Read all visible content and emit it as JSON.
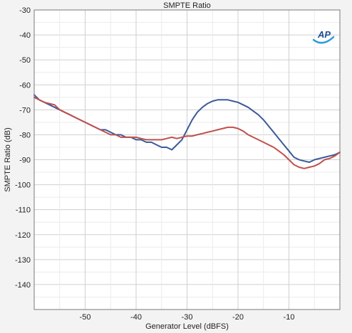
{
  "chart_data": {
    "type": "line",
    "title": "SMPTE Ratio",
    "xlabel": "Generator Level (dBFS)",
    "ylabel": "SMPTE Ratio (dB)",
    "xlim": [
      -60,
      0
    ],
    "ylim": [
      -150,
      -30
    ],
    "xticks": [
      -50,
      -40,
      -30,
      -20,
      -10
    ],
    "yticks": [
      -30,
      -40,
      -50,
      -60,
      -70,
      -80,
      -90,
      -100,
      -110,
      -120,
      -130,
      -140
    ],
    "grid": true,
    "legend": "none",
    "logo": "AP",
    "series": [
      {
        "color": "#3a5a98",
        "x": [
          -60,
          -59,
          -58,
          -57,
          -56,
          -55,
          -54,
          -53,
          -52,
          -51,
          -50,
          -49,
          -48,
          -47,
          -46,
          -45,
          -44,
          -43,
          -42,
          -41,
          -40,
          -39,
          -38,
          -37,
          -36,
          -35,
          -34,
          -33,
          -32,
          -31,
          -30,
          -29,
          -28,
          -27,
          -26,
          -25,
          -24,
          -23,
          -22,
          -21,
          -20,
          -19,
          -18,
          -17,
          -16,
          -15,
          -14,
          -13,
          -12,
          -11,
          -10,
          -9,
          -8,
          -7,
          -6,
          -5,
          -4,
          -3,
          -2,
          -1,
          0
        ],
        "y": [
          -64,
          -66,
          -67,
          -68,
          -69,
          -70,
          -71,
          -72,
          -73,
          -74,
          -75,
          -76,
          -77,
          -78,
          -78,
          -79,
          -80,
          -80,
          -81,
          -81,
          -82,
          -82,
          -83,
          -83,
          -84,
          -85,
          -85,
          -86,
          -84,
          -82,
          -78,
          -74,
          -71,
          -69,
          -67.5,
          -66.5,
          -66,
          -66,
          -66,
          -66.5,
          -67,
          -68,
          -69,
          -70.5,
          -72,
          -74,
          -76.5,
          -79,
          -81.5,
          -84,
          -86.5,
          -89,
          -90,
          -90.5,
          -91,
          -90,
          -89.5,
          -89,
          -88.5,
          -88,
          -87
        ]
      },
      {
        "color": "#c0504d",
        "x": [
          -60,
          -59,
          -58,
          -57,
          -56,
          -55,
          -54,
          -53,
          -52,
          -51,
          -50,
          -49,
          -48,
          -47,
          -46,
          -45,
          -44,
          -43,
          -42,
          -41,
          -40,
          -39,
          -38,
          -37,
          -36,
          -35,
          -34,
          -33,
          -32,
          -31,
          -30,
          -29,
          -28,
          -27,
          -26,
          -25,
          -24,
          -23,
          -22,
          -21,
          -20,
          -19,
          -18,
          -17,
          -16,
          -15,
          -14,
          -13,
          -12,
          -11,
          -10,
          -9,
          -8,
          -7,
          -6,
          -5,
          -4,
          -3,
          -2,
          -1,
          0
        ],
        "y": [
          -65,
          -66,
          -67,
          -67.5,
          -68,
          -70,
          -71,
          -72,
          -73,
          -74,
          -75,
          -76,
          -77,
          -78,
          -79,
          -80,
          -80,
          -81,
          -81,
          -81,
          -81,
          -81.5,
          -82,
          -82,
          -82,
          -82,
          -81.5,
          -81,
          -81.5,
          -81,
          -80.5,
          -80.5,
          -80,
          -79.5,
          -79,
          -78.5,
          -78,
          -77.5,
          -77,
          -77,
          -77.5,
          -78.5,
          -80,
          -81,
          -82,
          -83,
          -84,
          -85,
          -86.5,
          -88,
          -90,
          -92,
          -93,
          -93.5,
          -93,
          -92.5,
          -91.5,
          -90,
          -89.5,
          -88.5,
          -87
        ]
      }
    ]
  }
}
